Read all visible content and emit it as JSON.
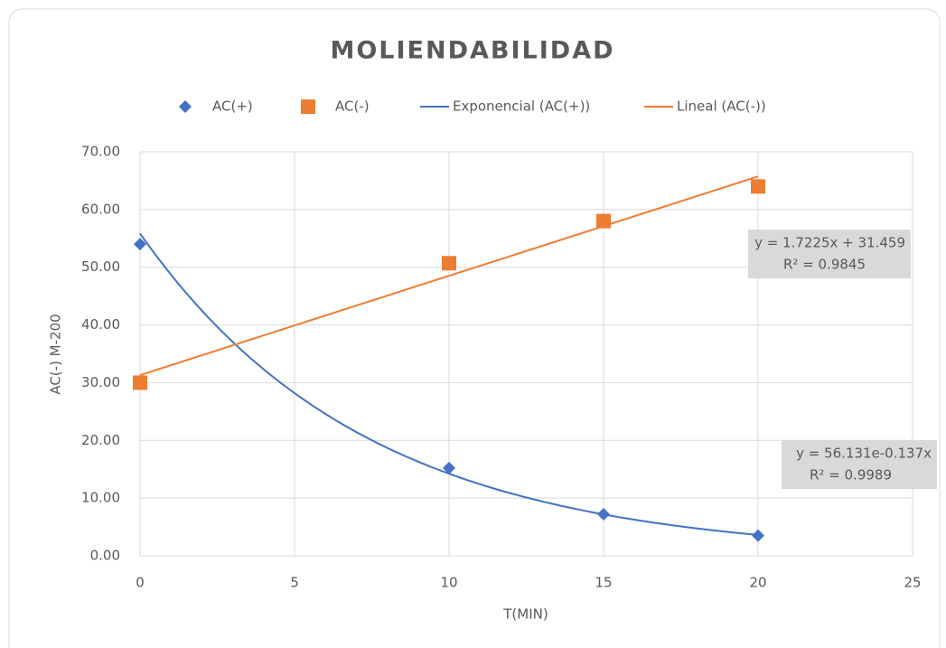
{
  "chart_data": {
    "type": "scatter",
    "title": "MOLIENDABILIDAD",
    "x_label": "T(MIN)",
    "y_label": "AC(-) M-200",
    "x": [
      0,
      10,
      15,
      20
    ],
    "series": [
      {
        "name": "AC(+)",
        "color": "#4472c4",
        "marker": "diamond",
        "values": [
          54,
          15.2,
          7.2,
          3.5
        ],
        "trendline": {
          "name": "Exponencial (AC(+))",
          "kind": "exponential",
          "equation": "y = 56.131e-0.137x",
          "r_squared": "R² = 0.9989"
        }
      },
      {
        "name": "AC(-)",
        "color": "#ed7d31",
        "marker": "square",
        "values": [
          30,
          50.7,
          58,
          64
        ],
        "trendline": {
          "name": "Lineal (AC(-))",
          "kind": "linear",
          "equation": "y = 1.7225x + 31.459",
          "r_squared": "R² = 0.9845"
        }
      }
    ],
    "xlim": [
      0,
      25
    ],
    "xticks": [
      0,
      5,
      10,
      15,
      20,
      25
    ],
    "ylim": [
      0,
      70
    ],
    "yticks": [
      {
        "value": 0,
        "label": "0.00"
      },
      {
        "value": 10,
        "label": "10.00"
      },
      {
        "value": 20,
        "label": "20.00"
      },
      {
        "value": 30,
        "label": "30.00"
      },
      {
        "value": 40,
        "label": "40.00"
      },
      {
        "value": 50,
        "label": "50.00"
      },
      {
        "value": 60,
        "label": "60.00"
      },
      {
        "value": 70,
        "label": "70.00"
      }
    ],
    "grid": true,
    "legend": "top"
  }
}
